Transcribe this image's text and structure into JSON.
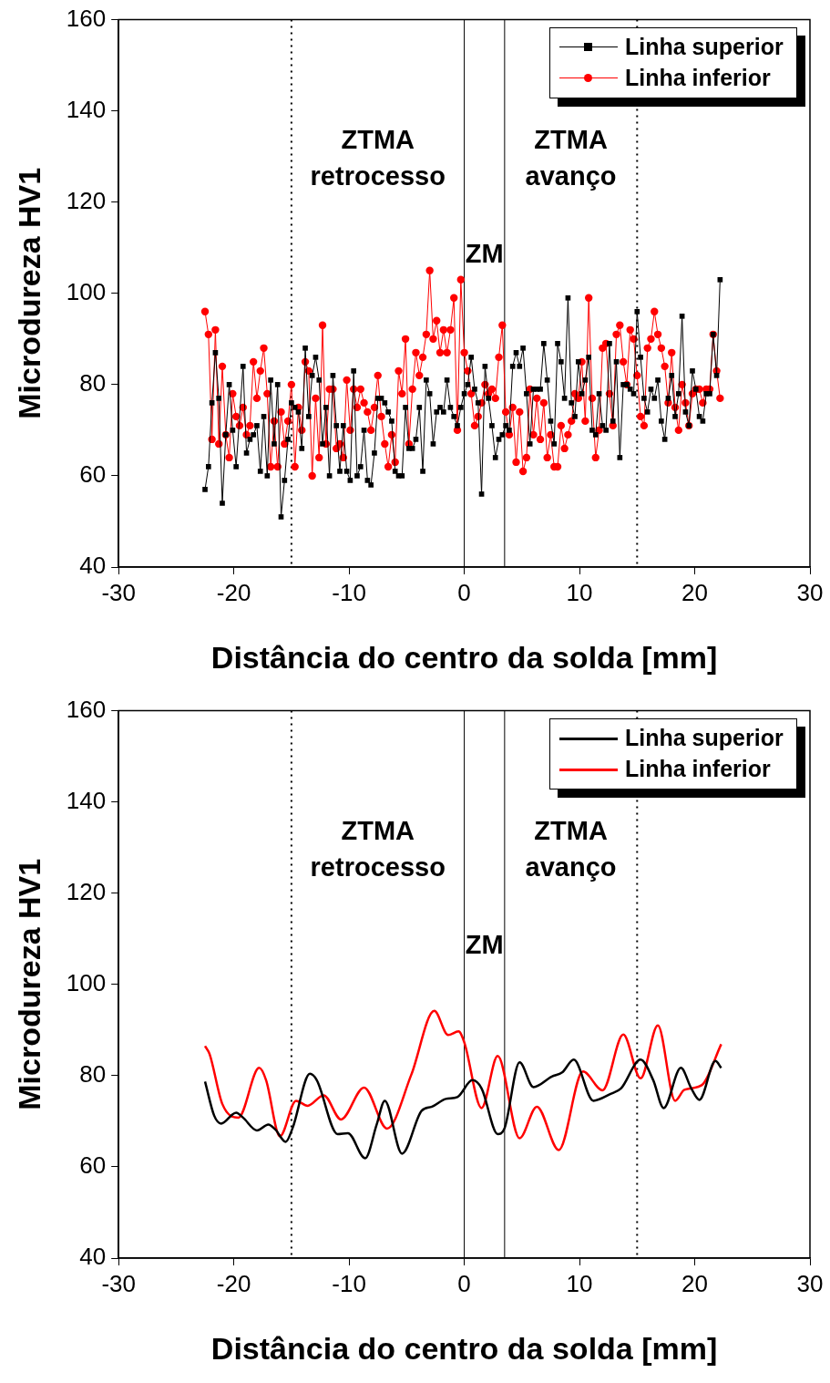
{
  "chart_data": [
    {
      "type": "line",
      "xlabel": "Distância do centro da solda [mm]",
      "ylabel": "Microdureza HV1",
      "xlim": [
        -30,
        30
      ],
      "xticks": [
        -30,
        -20,
        -10,
        0,
        10,
        20,
        30
      ],
      "ylim": [
        40,
        160
      ],
      "yticks": [
        40,
        60,
        80,
        100,
        120,
        140,
        160
      ],
      "grid": false,
      "legend": "top right",
      "x": [
        -22.5,
        -22.2,
        -21.9,
        -21.6,
        -21.3,
        -21,
        -20.7,
        -20.4,
        -20.1,
        -19.8,
        -19.5,
        -19.2,
        -18.9,
        -18.6,
        -18.3,
        -18,
        -17.7,
        -17.4,
        -17.1,
        -16.8,
        -16.5,
        -16.2,
        -15.9,
        -15.6,
        -15.3,
        -15,
        -14.7,
        -14.4,
        -14.1,
        -13.8,
        -13.5,
        -13.2,
        -12.9,
        -12.6,
        -12.3,
        -12,
        -11.7,
        -11.4,
        -11.1,
        -10.8,
        -10.5,
        -10.2,
        -9.9,
        -9.6,
        -9.3,
        -9,
        -8.7,
        -8.4,
        -8.1,
        -7.8,
        -7.5,
        -7.2,
        -6.9,
        -6.6,
        -6.3,
        -6,
        -5.7,
        -5.4,
        -5.1,
        -4.8,
        -4.5,
        -4.2,
        -3.9,
        -3.6,
        -3.3,
        -3,
        -2.7,
        -2.4,
        -2.1,
        -1.8,
        -1.5,
        -1.2,
        -0.9,
        -0.6,
        -0.3,
        0,
        0.3,
        0.6,
        0.9,
        1.2,
        1.5,
        1.8,
        2.1,
        2.4,
        2.7,
        3,
        3.3,
        3.6,
        3.9,
        4.2,
        4.5,
        4.8,
        5.1,
        5.4,
        5.7,
        6,
        6.3,
        6.6,
        6.9,
        7.2,
        7.5,
        7.8,
        8.1,
        8.4,
        8.7,
        9,
        9.3,
        9.6,
        9.9,
        10.2,
        10.5,
        10.8,
        11.1,
        11.4,
        11.7,
        12,
        12.3,
        12.6,
        12.9,
        13.2,
        13.5,
        13.8,
        14.1,
        14.4,
        14.7,
        15,
        15.3,
        15.6,
        15.9,
        16.2,
        16.5,
        16.8,
        17.1,
        17.4,
        17.7,
        18,
        18.3,
        18.6,
        18.9,
        19.2,
        19.5,
        19.8,
        20.1,
        20.4,
        20.7,
        21,
        21.3,
        21.6,
        21.9,
        22.2
      ],
      "series": [
        {
          "name": "Linha superior",
          "color": "#000000",
          "marker": "square",
          "x": [
            -22.5,
            -22.2,
            -21.9,
            -21.6,
            -21.3,
            -21,
            -20.7,
            -20.4,
            -20.1,
            -19.8,
            -19.2,
            -18.9,
            -18.6,
            -18.3,
            -18,
            -17.7,
            -17.4,
            -17.1,
            -16.8,
            -16.5,
            -16.2,
            -15.9,
            -15.6,
            -15.3,
            -15,
            -14.7,
            -14.4,
            -14.1,
            -13.8,
            -13.5,
            -13.2,
            -12.9,
            -12.6,
            -12.3,
            -12,
            -11.7,
            -11.4,
            -11.1,
            -10.8,
            -10.5,
            -10.2,
            -9.9,
            -9.6,
            -9.3,
            -9,
            -8.7,
            -8.4,
            -8.1,
            -7.8,
            -7.5,
            -7.2,
            -6.9,
            -6.6,
            -6.3,
            -6,
            -5.7,
            -5.4,
            -5.1,
            -4.8,
            -4.5,
            -4.2,
            -3.9,
            -3.6,
            -3.3,
            -3,
            -2.7,
            -2.4,
            -2.1,
            -1.8,
            -1.5,
            -1.2,
            -0.9,
            -0.6,
            -0.3,
            0,
            0.3,
            0.6,
            0.9,
            1.2,
            1.5,
            1.8,
            2.1,
            2.4,
            2.7,
            3,
            3.3,
            3.6,
            3.9,
            4.2,
            4.5,
            4.8,
            5.1,
            5.4,
            5.7,
            6,
            6.3,
            6.6,
            6.9,
            7.2,
            7.5,
            7.8,
            8.1,
            8.4,
            8.7,
            9,
            9.3,
            9.6,
            9.9,
            10.2,
            10.5,
            10.8,
            11.1,
            11.4,
            11.7,
            12,
            12.3,
            12.6,
            12.9,
            13.2,
            13.5,
            13.8,
            14.1,
            14.4,
            14.7,
            15,
            15.3,
            15.6,
            15.9,
            16.2,
            16.5,
            16.8,
            17.1,
            17.4,
            17.7,
            18,
            18.3,
            18.6,
            18.9,
            19.2,
            19.5,
            19.8,
            20.1,
            20.4,
            20.7,
            21,
            21.3,
            21.6,
            21.9,
            22.2
          ],
          "values": [
            57,
            62,
            76,
            87,
            77,
            54,
            69,
            80,
            70,
            62,
            84,
            65,
            68,
            69,
            71,
            61,
            73,
            60,
            81,
            67,
            80,
            51,
            59,
            68,
            76,
            75,
            74,
            66,
            88,
            73,
            82,
            86,
            81,
            67,
            75,
            60,
            82,
            71,
            61,
            71,
            61,
            59,
            83,
            60,
            62,
            70,
            59,
            58,
            65,
            77,
            77,
            76,
            74,
            72,
            61,
            60,
            60,
            75,
            66,
            66,
            68,
            75,
            61,
            81,
            78,
            67,
            74,
            75,
            74,
            81,
            75,
            73,
            71,
            75,
            78,
            80,
            86,
            79,
            76,
            56,
            84,
            77,
            71,
            64,
            68,
            69,
            71,
            70,
            84,
            87,
            84,
            88,
            78,
            67,
            79,
            79,
            79,
            89,
            81,
            72,
            67,
            89,
            85,
            77,
            99,
            76,
            73,
            85,
            78,
            81,
            86,
            70,
            69,
            78,
            71,
            70,
            89,
            72,
            85,
            64,
            80,
            80,
            79,
            78,
            96,
            86,
            77,
            74,
            79,
            77,
            81,
            72,
            68,
            77,
            82,
            73,
            78,
            95,
            74,
            71,
            83,
            79,
            73,
            72,
            78,
            78,
            91,
            82,
            103
          ]
        },
        {
          "name": "Linha inferior",
          "color": "#ff0000",
          "marker": "circle",
          "values": [
            96,
            91,
            68,
            92,
            67,
            84,
            69,
            64,
            78,
            73,
            71,
            75,
            69,
            71,
            85,
            77,
            83,
            88,
            78,
            62,
            72,
            62,
            74,
            67,
            72,
            80,
            62,
            75,
            70,
            85,
            83,
            60,
            77,
            64,
            93,
            67,
            79,
            79,
            66,
            67,
            64,
            81,
            70,
            79,
            75,
            79,
            76,
            74,
            70,
            75,
            82,
            73,
            67,
            62,
            69,
            63,
            83,
            78,
            90,
            67,
            79,
            87,
            82,
            86,
            91,
            105,
            90,
            94,
            87,
            92,
            87,
            92,
            99,
            70,
            103,
            87,
            83,
            78,
            71,
            73,
            76,
            80,
            78,
            79,
            77,
            86,
            93,
            74,
            69,
            75,
            63,
            74,
            61,
            64,
            79,
            69,
            77,
            68,
            76,
            64,
            69,
            62,
            62,
            71,
            66,
            69,
            72,
            78,
            77,
            85,
            72,
            99,
            77,
            64,
            70,
            88,
            89,
            78,
            71,
            91,
            93,
            85,
            80,
            92,
            90,
            82,
            73,
            71,
            88,
            90,
            96,
            91,
            88,
            84,
            76,
            87,
            75,
            70,
            80,
            76,
            71,
            78,
            79,
            79,
            76,
            79,
            79,
            91,
            83,
            77
          ]
        }
      ],
      "ref_lines": [
        {
          "axis": "x",
          "value": -15,
          "line_style": "dotted"
        },
        {
          "axis": "x",
          "value": 0,
          "line_style": "solid"
        },
        {
          "axis": "x",
          "value": 3.5,
          "line_style": "solid"
        },
        {
          "axis": "x",
          "value": 15,
          "line_style": "dotted"
        }
      ],
      "annotations": [
        "ZTMA\nretrocesso",
        "ZM",
        "ZTMA\navanço"
      ]
    },
    {
      "type": "line",
      "xlabel": "Distância do centro da solda [mm]",
      "ylabel": "Microdureza HV1",
      "xlim": [
        -30,
        30
      ],
      "xticks": [
        -30,
        -20,
        -10,
        0,
        10,
        20,
        30
      ],
      "ylim": [
        40,
        160
      ],
      "yticks": [
        40,
        60,
        80,
        100,
        120,
        140,
        160
      ],
      "grid": false,
      "legend": "top right",
      "marker": "none",
      "series": [
        {
          "name": "Linha superior",
          "color": "#000000",
          "x": [
            -22.5,
            -21.7,
            -21.1,
            -19.8,
            -19.2,
            -18,
            -17,
            -16.4,
            -15.5,
            -14.9,
            -13.4,
            -12.8,
            -11,
            -10.1,
            -8.6,
            -7.6,
            -6.9,
            -5.4,
            -3.7,
            -2.8,
            -1.6,
            -0.6,
            0.7,
            1.5,
            2.9,
            3.5,
            4.8,
            6,
            7.6,
            8.5,
            9.5,
            11.2,
            12.7,
            13.6,
            15.3,
            16.4,
            17.3,
            18.8,
            19.7,
            20.4,
            21.8,
            22.3
          ],
          "values": [
            78.7,
            71.2,
            69.5,
            71.9,
            70.8,
            68,
            69.3,
            68.2,
            65.5,
            68.5,
            80.4,
            79,
            67.2,
            67.4,
            61.9,
            69.3,
            74.5,
            62.9,
            72.3,
            73.2,
            74.9,
            75.3,
            79,
            77.2,
            67.2,
            68.5,
            82.9,
            77.5,
            79.8,
            80.7,
            83.5,
            74.5,
            76,
            77.2,
            83.5,
            79,
            72.9,
            81.7,
            77.2,
            74.7,
            83.2,
            81.7
          ]
        },
        {
          "name": "Linha inferior",
          "color": "#ff0000",
          "x": [
            -22.5,
            -22.1,
            -21,
            -19.6,
            -17.8,
            -17.2,
            -16,
            -14.6,
            -13.6,
            -12.2,
            -10.7,
            -8.7,
            -6.7,
            -4.6,
            -2.6,
            -1.4,
            -0.5,
            0,
            1.5,
            2.9,
            4.8,
            6.3,
            8.2,
            10.3,
            12,
            13.8,
            15.3,
            16.8,
            18.3,
            19.1,
            20.6,
            22.3
          ],
          "values": [
            86.5,
            84.7,
            73.8,
            70.8,
            81.7,
            79,
            66.7,
            74.5,
            73.4,
            75.7,
            70.4,
            77.4,
            68.4,
            80.2,
            94.2,
            88.9,
            89.7,
            87.3,
            72.9,
            84.3,
            66.3,
            73.2,
            63.7,
            80.9,
            76.8,
            89,
            79.4,
            91,
            74.5,
            76.9,
            77.9,
            86.9
          ]
        }
      ],
      "ref_lines": [
        {
          "axis": "x",
          "value": -15,
          "line_style": "dotted"
        },
        {
          "axis": "x",
          "value": 0,
          "line_style": "solid"
        },
        {
          "axis": "x",
          "value": 3.5,
          "line_style": "solid"
        },
        {
          "axis": "x",
          "value": 15,
          "line_style": "dotted"
        }
      ],
      "annotations": [
        "ZTMA\nretrocesso",
        "ZM",
        "ZTMA\navanço"
      ]
    }
  ]
}
